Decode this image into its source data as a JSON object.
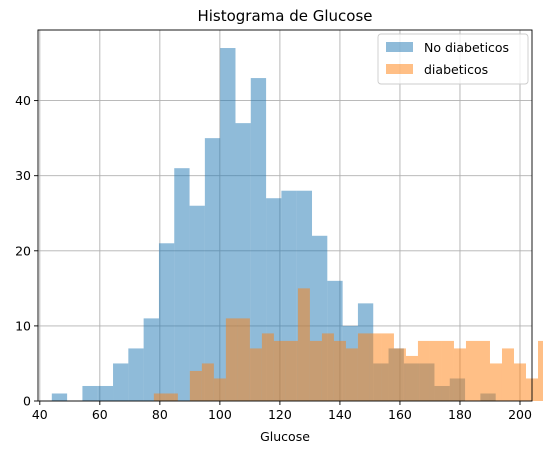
{
  "chart_data": {
    "type": "bar",
    "title": "Histograma de Glucose",
    "xlabel": "Glucose",
    "ylabel": "",
    "xlim": [
      39.4,
      204.0
    ],
    "ylim": [
      0,
      49.4
    ],
    "xticks": [
      40,
      60,
      80,
      100,
      120,
      140,
      160,
      180,
      200
    ],
    "yticks": [
      0,
      10,
      20,
      30,
      40
    ],
    "grid": true,
    "legend_position": "top-right",
    "series": [
      {
        "name": "No diabeticos",
        "color": "#1f77b4",
        "alpha": 0.5,
        "bin_start": 44,
        "bin_width": 5.1,
        "values": [
          1,
          0,
          2,
          2,
          5,
          7,
          11,
          21,
          31,
          26,
          35,
          47,
          37,
          43,
          27,
          28,
          28,
          22,
          16,
          10,
          13,
          5,
          7,
          5,
          5,
          2,
          3,
          0,
          1
        ]
      },
      {
        "name": "diabeticos",
        "color": "#ff7f0e",
        "alpha": 0.5,
        "bin_start": 78,
        "bin_width": 4.0,
        "values": [
          1,
          1,
          0,
          4,
          5,
          3,
          11,
          11,
          7,
          9,
          8,
          8,
          15,
          8,
          9,
          8,
          7,
          9,
          9,
          9,
          7,
          6,
          8,
          8,
          8,
          7,
          8,
          8,
          5,
          7,
          5,
          3,
          8,
          6,
          3,
          8,
          4,
          3,
          0,
          5,
          1,
          1,
          3,
          1,
          1,
          9
        ]
      }
    ]
  }
}
